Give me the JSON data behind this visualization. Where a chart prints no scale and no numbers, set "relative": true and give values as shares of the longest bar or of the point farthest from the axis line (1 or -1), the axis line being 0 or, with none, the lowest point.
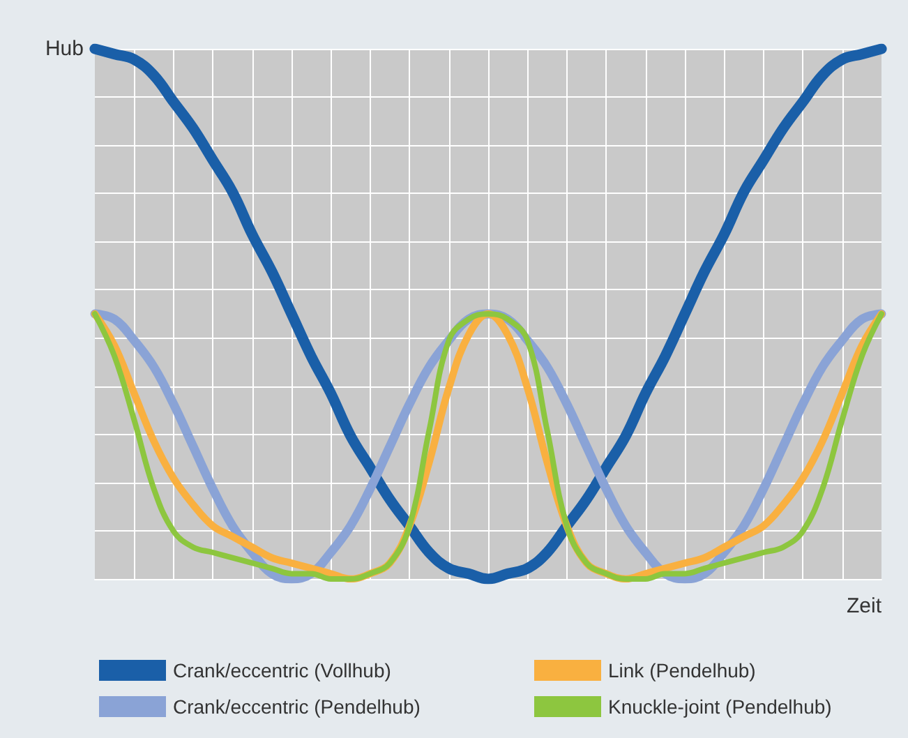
{
  "chart_data": {
    "type": "line",
    "relative": true,
    "xlabel": "Zeit",
    "ylabel": "Hub",
    "grid": true,
    "legend": "bottom",
    "categories": [
      null,
      null,
      null,
      null,
      null,
      null,
      null,
      null,
      null,
      null,
      null,
      null,
      null,
      null,
      null,
      null,
      null,
      null,
      null,
      null,
      null,
      null,
      null,
      null,
      null,
      null,
      null,
      null,
      null,
      null,
      null,
      null,
      null,
      null,
      null,
      null,
      null,
      null,
      null,
      null,
      null
    ],
    "series": [
      {
        "name": "Crank/eccentric (Vollhub)",
        "color": "#1a5fa8",
        "values": [
          1,
          0.99,
          0.98,
          0.95,
          0.9,
          0.85,
          0.79,
          0.73,
          0.65,
          0.58,
          0.5,
          0.42,
          0.35,
          0.27,
          0.21,
          0.15,
          0.1,
          0.05,
          0.02,
          0.01,
          0,
          0.01,
          0.02,
          0.05,
          0.1,
          0.15,
          0.21,
          0.27,
          0.35,
          0.42,
          0.5,
          0.58,
          0.65,
          0.73,
          0.79,
          0.85,
          0.9,
          0.95,
          0.98,
          0.99,
          1
        ]
      },
      {
        "name": "Crank/eccentric (Pendelhub)",
        "color": "#8aa3d6",
        "values": [
          0.5,
          0.49,
          0.45,
          0.4,
          0.33,
          0.25,
          0.17,
          0.1,
          0.05,
          0.01,
          0,
          0.01,
          0.05,
          0.1,
          0.17,
          0.25,
          0.33,
          0.4,
          0.45,
          0.49,
          0.5,
          0.49,
          0.45,
          0.4,
          0.33,
          0.25,
          0.17,
          0.1,
          0.05,
          0.01,
          0,
          0.01,
          0.05,
          0.1,
          0.17,
          0.25,
          0.33,
          0.4,
          0.45,
          0.49,
          0.5
        ]
      },
      {
        "name": "Link (Pendelhub)",
        "color": "#f9b040",
        "values": [
          0.5,
          0.44,
          0.35,
          0.26,
          0.19,
          0.14,
          0.1,
          0.08,
          0.06,
          0.04,
          0.03,
          0.02,
          0.01,
          0,
          0.01,
          0.03,
          0.1,
          0.22,
          0.36,
          0.46,
          0.5,
          0.46,
          0.36,
          0.22,
          0.1,
          0.03,
          0.01,
          0,
          0.01,
          0.02,
          0.03,
          0.04,
          0.06,
          0.08,
          0.1,
          0.14,
          0.19,
          0.26,
          0.35,
          0.44,
          0.5
        ]
      },
      {
        "name": "Knuckle-joint (Pendelhub)",
        "color": "#8dc63f",
        "values": [
          0.5,
          0.42,
          0.3,
          0.17,
          0.09,
          0.06,
          0.05,
          0.04,
          0.03,
          0.02,
          0.01,
          0.01,
          0,
          0,
          0.01,
          0.03,
          0.1,
          0.28,
          0.45,
          0.49,
          0.5,
          0.49,
          0.45,
          0.28,
          0.1,
          0.03,
          0.01,
          0,
          0,
          0.01,
          0.01,
          0.02,
          0.03,
          0.04,
          0.05,
          0.06,
          0.09,
          0.17,
          0.3,
          0.42,
          0.5
        ]
      }
    ]
  }
}
